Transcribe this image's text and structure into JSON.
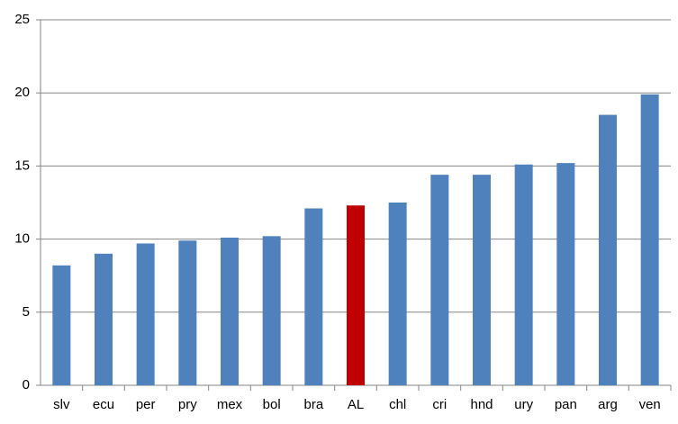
{
  "chart_data": {
    "type": "bar",
    "categories": [
      "slv",
      "ecu",
      "per",
      "pry",
      "mex",
      "bol",
      "bra",
      "AL",
      "chl",
      "cri",
      "hnd",
      "ury",
      "pan",
      "arg",
      "ven"
    ],
    "values": [
      8.2,
      9.0,
      9.7,
      9.9,
      10.1,
      10.2,
      12.1,
      12.3,
      12.5,
      14.4,
      14.4,
      15.1,
      15.2,
      18.5,
      19.9
    ],
    "colors": [
      "#4f81bd",
      "#4f81bd",
      "#4f81bd",
      "#4f81bd",
      "#4f81bd",
      "#4f81bd",
      "#4f81bd",
      "#c00000",
      "#4f81bd",
      "#4f81bd",
      "#4f81bd",
      "#4f81bd",
      "#4f81bd",
      "#4f81bd",
      "#4f81bd"
    ],
    "ylim": [
      0,
      25
    ],
    "yticks": [
      0,
      5,
      10,
      15,
      20,
      25
    ],
    "grid": true
  }
}
